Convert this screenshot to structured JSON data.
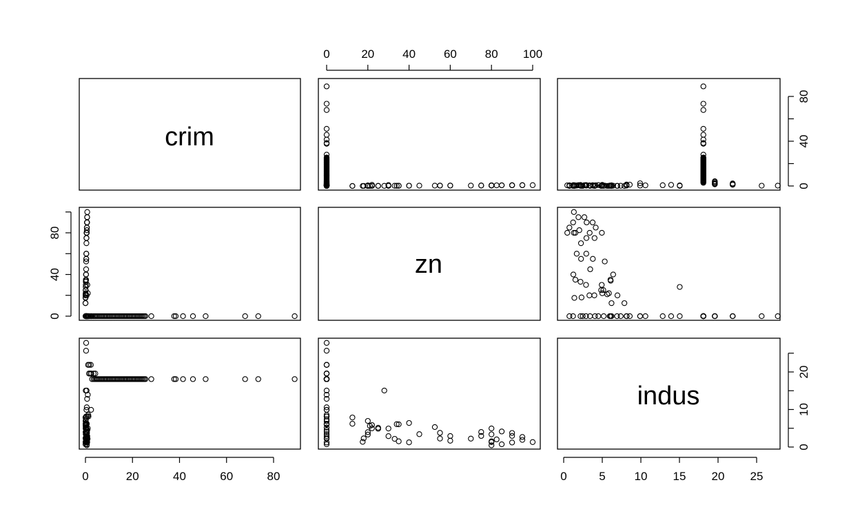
{
  "chart_data": {
    "type": "scatter",
    "layout": "scatterplot-matrix",
    "variables": [
      "crim",
      "zn",
      "indus"
    ],
    "axes": {
      "crim": {
        "range": [
          0,
          89
        ],
        "ticks": [
          0,
          20,
          40,
          60,
          80
        ],
        "tick_labels": [
          "0",
          "20",
          "40",
          "60",
          "80"
        ]
      },
      "zn": {
        "range": [
          0,
          100
        ],
        "ticks_x": [
          0,
          20,
          40,
          60,
          80,
          100
        ],
        "tick_labels_x": [
          "0",
          "20",
          "40",
          "60",
          "80",
          "100"
        ],
        "ticks_y": [
          0,
          40,
          80
        ],
        "tick_labels_y": [
          "0",
          "40",
          "80"
        ]
      },
      "indus": {
        "range": [
          0.46,
          27.74
        ],
        "ticks_x": [
          0,
          5,
          10,
          15,
          20,
          25
        ],
        "tick_labels_x": [
          "0",
          "5",
          "10",
          "15",
          "20",
          "25"
        ],
        "ticks_y": [
          0,
          10,
          20
        ],
        "tick_labels_y": [
          "0",
          "10",
          "20"
        ]
      }
    },
    "observations": {
      "zero_zn": [
        [
          0.03,
          0,
          0.74
        ],
        [
          0.05,
          0,
          1.21
        ],
        [
          0.09,
          0,
          2.46
        ],
        [
          0.12,
          0,
          3.41
        ],
        [
          0.15,
          0,
          4.05
        ],
        [
          0.2,
          0,
          5.19
        ],
        [
          0.25,
          0,
          6.07
        ],
        [
          0.3,
          0,
          8.14
        ],
        [
          0.4,
          0,
          9.9
        ],
        [
          0.55,
          0,
          10.59
        ],
        [
          0.7,
          0,
          12.83
        ],
        [
          1.0,
          0,
          13.92
        ],
        [
          0.8,
          0,
          4.49
        ],
        [
          0.6,
          0,
          6.2
        ],
        [
          1.2,
          0,
          8.56
        ],
        [
          0.1,
          0,
          6.91
        ],
        [
          0.18,
          0,
          7.38
        ],
        [
          0.35,
          0,
          5.96
        ],
        [
          0.45,
          0,
          2.89
        ],
        [
          0.9,
          0,
          2.18
        ],
        [
          1.5,
          0,
          19.58
        ],
        [
          2.0,
          0,
          19.58
        ],
        [
          2.5,
          0,
          19.58
        ],
        [
          3.5,
          0,
          19.58
        ],
        [
          4.2,
          0,
          19.58
        ],
        [
          1.1,
          0,
          21.89
        ],
        [
          1.6,
          0,
          21.89
        ],
        [
          2.3,
          0,
          21.89
        ],
        [
          0.25,
          0,
          25.65
        ],
        [
          0.3,
          0,
          27.74
        ],
        [
          0.8,
          0,
          8.14
        ],
        [
          1.3,
          0,
          8.14
        ],
        [
          2.4,
          0,
          9.9
        ],
        [
          0.5,
          0,
          15.04
        ],
        [
          2.8,
          0,
          18.1
        ],
        [
          3.5,
          0,
          18.1
        ],
        [
          4.0,
          0,
          18.1
        ],
        [
          4.5,
          0,
          18.1
        ],
        [
          5.0,
          0,
          18.1
        ],
        [
          5.5,
          0,
          18.1
        ],
        [
          6.0,
          0,
          18.1
        ],
        [
          6.5,
          0,
          18.1
        ],
        [
          7.0,
          0,
          18.1
        ],
        [
          7.5,
          0,
          18.1
        ],
        [
          8.0,
          0,
          18.1
        ],
        [
          8.5,
          0,
          18.1
        ],
        [
          9.0,
          0,
          18.1
        ],
        [
          9.5,
          0,
          18.1
        ],
        [
          10.0,
          0,
          18.1
        ],
        [
          10.5,
          0,
          18.1
        ],
        [
          11.0,
          0,
          18.1
        ],
        [
          11.5,
          0,
          18.1
        ],
        [
          12.0,
          0,
          18.1
        ],
        [
          12.5,
          0,
          18.1
        ],
        [
          13.0,
          0,
          18.1
        ],
        [
          13.5,
          0,
          18.1
        ],
        [
          14.0,
          0,
          18.1
        ],
        [
          14.5,
          0,
          18.1
        ],
        [
          15.0,
          0,
          18.1
        ],
        [
          15.5,
          0,
          18.1
        ],
        [
          16.0,
          0,
          18.1
        ],
        [
          16.5,
          0,
          18.1
        ],
        [
          17.0,
          0,
          18.1
        ],
        [
          17.5,
          0,
          18.1
        ],
        [
          18.0,
          0,
          18.1
        ],
        [
          18.5,
          0,
          18.1
        ],
        [
          19.0,
          0,
          18.1
        ],
        [
          19.5,
          0,
          18.1
        ],
        [
          20.0,
          0,
          18.1
        ],
        [
          20.5,
          0,
          18.1
        ],
        [
          21.0,
          0,
          18.1
        ],
        [
          21.5,
          0,
          18.1
        ],
        [
          22.0,
          0,
          18.1
        ],
        [
          22.5,
          0,
          18.1
        ],
        [
          23.0,
          0,
          18.1
        ],
        [
          23.5,
          0,
          18.1
        ],
        [
          24.0,
          0,
          18.1
        ],
        [
          24.5,
          0,
          18.1
        ],
        [
          25.0,
          0,
          18.1
        ],
        [
          25.5,
          0,
          18.1
        ],
        [
          28.0,
          0,
          18.1
        ],
        [
          37.7,
          0,
          18.1
        ],
        [
          38.4,
          0,
          18.1
        ],
        [
          41.5,
          0,
          18.1
        ],
        [
          45.7,
          0,
          18.1
        ],
        [
          51.1,
          0,
          18.1
        ],
        [
          67.9,
          0,
          18.1
        ],
        [
          73.5,
          0,
          18.1
        ],
        [
          88.98,
          0,
          18.1
        ]
      ],
      "positive_zn": [
        [
          0.01,
          12.5,
          7.87
        ],
        [
          0.02,
          12.5,
          6.2
        ],
        [
          0.03,
          17.5,
          1.38
        ],
        [
          0.04,
          18,
          2.31
        ],
        [
          0.05,
          20,
          3.97
        ],
        [
          0.06,
          20,
          6.96
        ],
        [
          0.07,
          21,
          5.64
        ],
        [
          0.08,
          22,
          5.86
        ],
        [
          0.09,
          25,
          4.86
        ],
        [
          0.1,
          25,
          5.13
        ],
        [
          0.12,
          28,
          15.04
        ],
        [
          0.14,
          30,
          4.93
        ],
        [
          0.16,
          33,
          2.18
        ],
        [
          0.18,
          34,
          6.09
        ],
        [
          0.2,
          35,
          6.06
        ],
        [
          0.22,
          35,
          1.52
        ],
        [
          0.24,
          40,
          6.41
        ],
        [
          0.26,
          40,
          1.25
        ],
        [
          0.28,
          45,
          3.44
        ],
        [
          0.3,
          52.5,
          5.32
        ],
        [
          0.32,
          55,
          3.78
        ],
        [
          0.34,
          55,
          2.25
        ],
        [
          0.36,
          60,
          1.69
        ],
        [
          0.38,
          60,
          2.93
        ],
        [
          0.4,
          70,
          2.24
        ],
        [
          0.42,
          75,
          2.95
        ],
        [
          0.44,
          75,
          4.0
        ],
        [
          0.46,
          80,
          3.37
        ],
        [
          0.48,
          80,
          4.95
        ],
        [
          0.5,
          80,
          1.52
        ],
        [
          0.52,
          80,
          1.32
        ],
        [
          0.55,
          80,
          0.46
        ],
        [
          0.58,
          82.5,
          2.03
        ],
        [
          0.6,
          85,
          4.15
        ],
        [
          0.62,
          85,
          0.74
        ],
        [
          0.64,
          90,
          2.97
        ],
        [
          0.66,
          90,
          3.75
        ],
        [
          0.68,
          90,
          1.22
        ],
        [
          0.7,
          95,
          2.68
        ],
        [
          0.72,
          95,
          1.91
        ],
        [
          0.75,
          100,
          1.32
        ],
        [
          0.5,
          20,
          3.33
        ],
        [
          0.8,
          30,
          2.89
        ],
        [
          1.0,
          22,
          5.0
        ]
      ]
    }
  },
  "labels": {
    "crim": "crim",
    "zn": "zn",
    "indus": "indus"
  }
}
